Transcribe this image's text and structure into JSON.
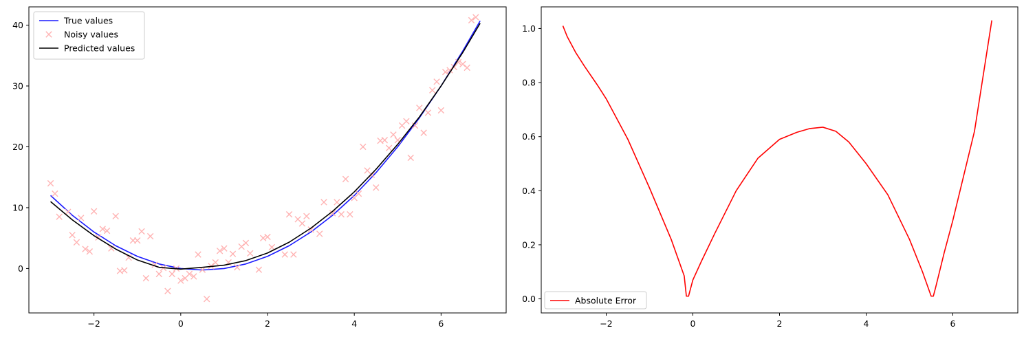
{
  "chart_data": [
    {
      "type": "line+scatter",
      "title": "",
      "xlabel": "",
      "ylabel": "",
      "xlim": [
        -3.5,
        7.5
      ],
      "ylim": [
        -7.3,
        43.0
      ],
      "xticks": [
        -2,
        0,
        2,
        4,
        6
      ],
      "xtick_labels": [
        "−2",
        "0",
        "2",
        "4",
        "6"
      ],
      "yticks": [
        0,
        10,
        20,
        30,
        40
      ],
      "ytick_labels": [
        "0",
        "10",
        "20",
        "30",
        "40"
      ],
      "grid": false,
      "legend_position": "top-left",
      "series": [
        {
          "name": "True values",
          "kind": "line",
          "color": "#1a1aff",
          "x": [
            -3.0,
            -2.5,
            -2.0,
            -1.5,
            -1.0,
            -0.5,
            0.0,
            0.5,
            1.0,
            1.5,
            2.0,
            2.5,
            3.0,
            3.5,
            4.0,
            4.5,
            5.0,
            5.5,
            6.0,
            6.5,
            6.9
          ],
          "y": [
            12.0,
            8.75,
            6.0,
            3.75,
            2.0,
            0.75,
            0.0,
            -0.25,
            0.0,
            0.75,
            2.0,
            3.75,
            6.0,
            8.75,
            12.0,
            15.75,
            20.0,
            24.75,
            30.0,
            35.75,
            40.7
          ]
        },
        {
          "name": "Noisy values",
          "kind": "scatter",
          "color": "#ffb3b3",
          "x": [
            -3.0,
            -2.9,
            -2.8,
            -2.6,
            -2.5,
            -2.4,
            -2.3,
            -2.2,
            -2.1,
            -2.0,
            -1.9,
            -1.8,
            -1.7,
            -1.6,
            -1.5,
            -1.4,
            -1.3,
            -1.2,
            -1.1,
            -1.0,
            -0.9,
            -0.8,
            -0.7,
            -0.6,
            -0.5,
            -0.4,
            -0.3,
            -0.2,
            -0.1,
            0.0,
            0.1,
            0.2,
            0.3,
            0.4,
            0.5,
            0.6,
            0.7,
            0.8,
            0.9,
            1.0,
            1.1,
            1.2,
            1.3,
            1.4,
            1.5,
            1.6,
            1.8,
            1.9,
            2.0,
            2.1,
            2.4,
            2.5,
            2.6,
            2.7,
            2.8,
            2.9,
            3.0,
            3.2,
            3.3,
            3.5,
            3.6,
            3.7,
            3.8,
            3.9,
            4.0,
            4.1,
            4.2,
            4.3,
            4.4,
            4.5,
            4.6,
            4.7,
            4.8,
            4.9,
            5.0,
            5.1,
            5.2,
            5.3,
            5.4,
            5.5,
            5.6,
            5.7,
            5.8,
            5.9,
            6.0,
            6.1,
            6.2,
            6.3,
            6.4,
            6.5,
            6.6,
            6.7,
            6.8
          ],
          "y": [
            14.0,
            12.3,
            8.5,
            9.3,
            5.5,
            4.3,
            8.3,
            3.2,
            2.8,
            9.4,
            5.1,
            6.5,
            6.2,
            3.3,
            8.6,
            -0.4,
            -0.3,
            1.8,
            4.6,
            4.6,
            6.1,
            -1.6,
            5.3,
            0.6,
            -0.9,
            0.1,
            -3.7,
            -0.9,
            0.0,
            -2.0,
            -1.6,
            -0.9,
            -1.3,
            2.3,
            -0.2,
            -5.0,
            0.4,
            1.0,
            2.9,
            3.3,
            1.0,
            2.4,
            0.2,
            3.6,
            4.2,
            2.5,
            -0.2,
            5.0,
            5.2,
            3.5,
            2.3,
            8.9,
            2.3,
            8.1,
            7.4,
            8.6,
            6.4,
            5.7,
            10.9,
            9.1,
            10.9,
            8.9,
            14.7,
            8.9,
            11.6,
            12.3,
            20.0,
            16.1,
            15.4,
            13.3,
            21.0,
            21.1,
            19.8,
            22.0,
            21.1,
            23.5,
            24.2,
            18.2,
            23.5,
            26.4,
            22.3,
            25.6,
            29.3,
            30.7,
            26.0,
            32.3,
            32.6,
            33.1,
            33.9,
            33.6,
            33.0,
            40.8,
            41.3
          ]
        },
        {
          "name": "Predicted values",
          "kind": "line",
          "color": "#000000",
          "x": [
            -3.0,
            -2.5,
            -2.0,
            -1.5,
            -1.0,
            -0.5,
            0.0,
            0.5,
            1.0,
            1.5,
            2.0,
            2.5,
            3.0,
            3.5,
            4.0,
            4.5,
            5.0,
            5.5,
            6.0,
            6.5,
            6.9
          ],
          "y": [
            11.0,
            8.0,
            5.4,
            3.2,
            1.4,
            0.2,
            -0.1,
            0.2,
            0.55,
            1.3,
            2.55,
            4.33,
            6.63,
            9.4,
            12.6,
            16.3,
            20.4,
            24.9,
            30.0,
            35.5,
            40.3
          ]
        }
      ]
    },
    {
      "type": "line",
      "title": "",
      "xlabel": "",
      "ylabel": "",
      "xlim": [
        -3.5,
        7.5
      ],
      "ylim": [
        -0.052,
        1.08
      ],
      "xticks": [
        -2,
        0,
        2,
        4,
        6
      ],
      "xtick_labels": [
        "−2",
        "0",
        "2",
        "4",
        "6"
      ],
      "yticks": [
        0.0,
        0.2,
        0.4,
        0.6,
        0.8,
        1.0
      ],
      "ytick_labels": [
        "0.0",
        "0.2",
        "0.4",
        "0.6",
        "0.8",
        "1.0"
      ],
      "grid": false,
      "legend_position": "bottom-left",
      "series": [
        {
          "name": "Absolute Error",
          "kind": "line",
          "color": "#ff0000",
          "x": [
            -3.0,
            -2.9,
            -2.7,
            -2.5,
            -2.2,
            -2.0,
            -1.5,
            -1.0,
            -0.5,
            -0.2,
            -0.15,
            -0.1,
            0.0,
            0.2,
            0.5,
            1.0,
            1.5,
            2.0,
            2.4,
            2.7,
            3.0,
            3.3,
            3.6,
            4.0,
            4.5,
            5.0,
            5.3,
            5.5,
            5.55,
            5.6,
            5.8,
            6.0,
            6.5,
            6.9
          ],
          "y": [
            1.01,
            0.97,
            0.91,
            0.86,
            0.79,
            0.74,
            0.59,
            0.41,
            0.22,
            0.085,
            0.01,
            0.01,
            0.07,
            0.14,
            0.24,
            0.4,
            0.52,
            0.59,
            0.616,
            0.63,
            0.635,
            0.62,
            0.58,
            0.5,
            0.385,
            0.22,
            0.1,
            0.01,
            0.01,
            0.04,
            0.17,
            0.29,
            0.62,
            1.03
          ]
        }
      ]
    }
  ]
}
